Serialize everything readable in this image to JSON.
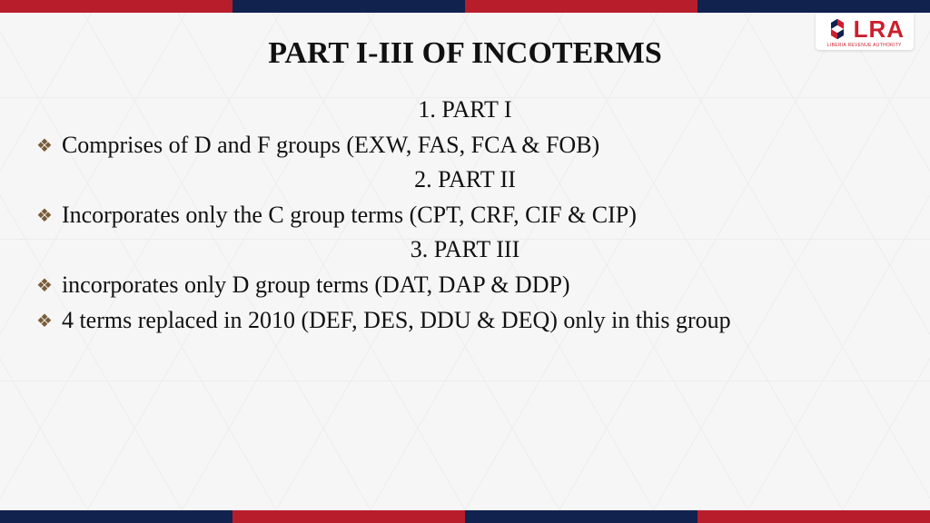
{
  "colors": {
    "bar_red": "#b81d2c",
    "bar_blue": "#11224f",
    "logo_red": "#cc1f2d",
    "logo_blue": "#11224f",
    "bullet_color": "#7a5c3a",
    "text_color": "#111111",
    "background": "#f7f7f7"
  },
  "top_bar_segments": [
    "#b81d2c",
    "#11224f",
    "#b81d2c",
    "#11224f"
  ],
  "bottom_bar_segments": [
    "#11224f",
    "#b81d2c",
    "#11224f",
    "#b81d2c"
  ],
  "logo": {
    "text": "LRA",
    "subtitle": "LIBERIA REVENUE AUTHORITY"
  },
  "title": "PART I-III OF INCOTERMS",
  "title_fontsize": 34,
  "body_fontsize": 26,
  "sections": [
    {
      "heading": "1. PART I",
      "bullets": [
        "Comprises of D and F groups (EXW, FAS, FCA & FOB)"
      ]
    },
    {
      "heading": "2. PART II",
      "bullets": [
        "Incorporates only the C group terms (CPT, CRF, CIF & CIP)"
      ]
    },
    {
      "heading": "3. PART III",
      "bullets": [
        "incorporates only D group terms (DAT, DAP & DDP)",
        "4 terms replaced in 2010 (DEF, DES, DDU & DEQ) only in this group"
      ]
    }
  ]
}
